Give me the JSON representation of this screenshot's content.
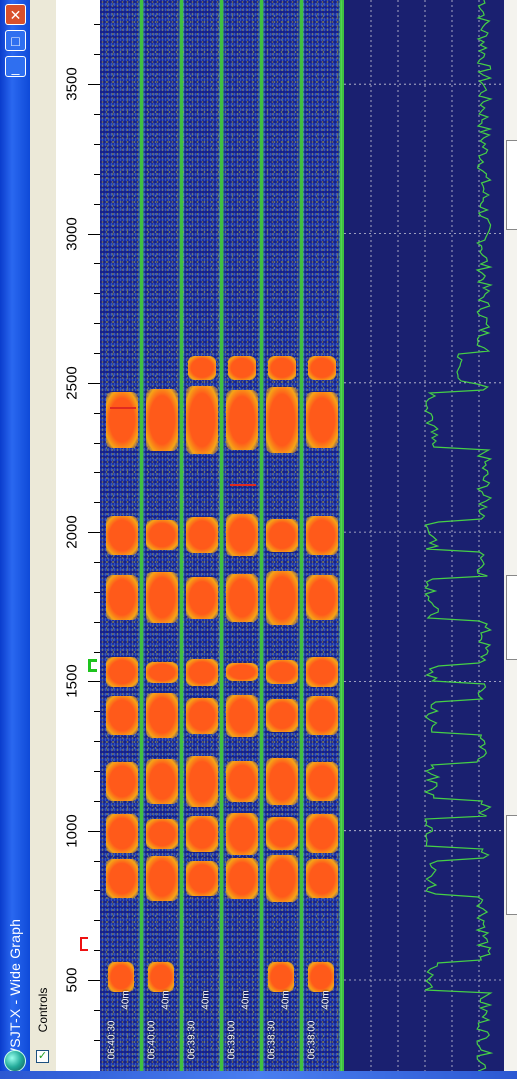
{
  "window": {
    "title": "WSJT-X - Wide Graph",
    "close_glyph": "✕",
    "maximize_glyph": "□",
    "minimize_glyph": "_"
  },
  "controls": {
    "label": "Controls",
    "checked": true,
    "check_glyph": "✓"
  },
  "frequency_axis": {
    "tick_labels": [
      "500",
      "1000",
      "1500",
      "2000",
      "2500",
      "3000",
      "3500"
    ]
  },
  "waterfall": {
    "rows": [
      {
        "time": "06:40:30",
        "band": "40m"
      },
      {
        "time": "06:40:00",
        "band": "40m"
      },
      {
        "time": "06:39:30",
        "band": "40m"
      },
      {
        "time": "06:39:00",
        "band": "40m"
      },
      {
        "time": "06:38:30",
        "band": "40m"
      },
      {
        "time": "06:38:00",
        "band": "40m"
      }
    ]
  },
  "colors": {
    "title_bar": "#0a3ccc",
    "waterfall_bg": "#15208a",
    "signal": "#ff5a1a",
    "separator": "#40c040",
    "spectrum_line": "#46d046"
  }
}
